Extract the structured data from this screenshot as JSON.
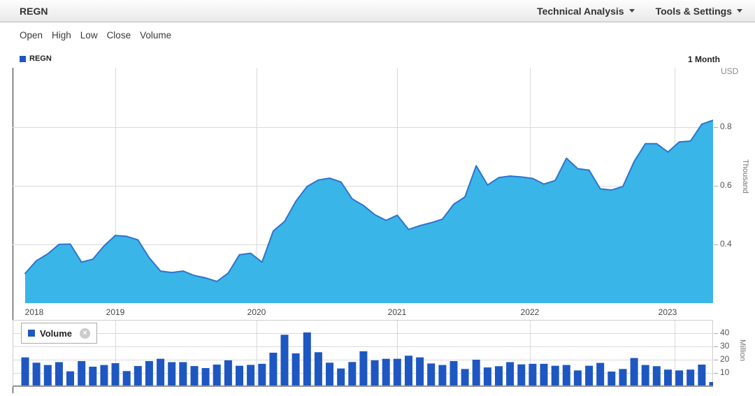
{
  "header": {
    "symbol": "REGN",
    "menus": [
      {
        "label": "Technical Analysis"
      },
      {
        "label": "Tools & Settings"
      }
    ]
  },
  "series_tabs": [
    "Open",
    "High",
    "Low",
    "Close",
    "Volume"
  ],
  "price_pane": {
    "legend": "REGN",
    "interval": "1 Month",
    "currency": "USD",
    "axis_title": "Thousand",
    "y_ticks": [
      "0.8",
      "0.6",
      "0.4"
    ]
  },
  "volume_pane": {
    "legend": "Volume",
    "axis_title": "Million",
    "y_ticks": [
      "40",
      "30",
      "20",
      "10"
    ]
  },
  "x_axis": {
    "years": [
      "2018",
      "2019",
      "2020",
      "2021",
      "2022",
      "2023"
    ]
  },
  "icons": {
    "close": "×"
  },
  "colors": {
    "area_fill": "#3ab5e8",
    "area_line": "#2e74cc",
    "volume_bar": "#1e57c2",
    "legend_marker": "#1e57c2",
    "grid": "#d9d9d9",
    "pane_border": "#cccccc",
    "axis_bottom": "#999999"
  },
  "chart_data": {
    "interval": "1 Month",
    "x_months": [
      "2018-04",
      "2018-05",
      "2018-06",
      "2018-07",
      "2018-08",
      "2018-09",
      "2018-10",
      "2018-11",
      "2018-12",
      "2019-01",
      "2019-02",
      "2019-03",
      "2019-04",
      "2019-05",
      "2019-06",
      "2019-07",
      "2019-08",
      "2019-09",
      "2019-10",
      "2019-11",
      "2019-12",
      "2020-01",
      "2020-02",
      "2020-03",
      "2020-04",
      "2020-05",
      "2020-06",
      "2020-07",
      "2020-08",
      "2020-09",
      "2020-10",
      "2020-11",
      "2020-12",
      "2021-01",
      "2021-02",
      "2021-03",
      "2021-04",
      "2021-05",
      "2021-06",
      "2021-07",
      "2021-08",
      "2021-09",
      "2021-10",
      "2021-11",
      "2021-12",
      "2022-01",
      "2022-02",
      "2022-03",
      "2022-04",
      "2022-05",
      "2022-06",
      "2022-07",
      "2022-08",
      "2022-09",
      "2022-10",
      "2022-11",
      "2022-12",
      "2023-01",
      "2023-02",
      "2023-03",
      "2023-04",
      "2023-05"
    ],
    "series": [
      {
        "type": "area",
        "name": "REGN",
        "unit": "thousand USD",
        "values": [
          0.307,
          0.35,
          0.373,
          0.405,
          0.406,
          0.345,
          0.355,
          0.4,
          0.435,
          0.432,
          0.42,
          0.36,
          0.315,
          0.31,
          0.315,
          0.3,
          0.292,
          0.28,
          0.308,
          0.37,
          0.375,
          0.345,
          0.45,
          0.482,
          0.55,
          0.6,
          0.622,
          0.628,
          0.615,
          0.558,
          0.536,
          0.505,
          0.486,
          0.503,
          0.455,
          0.468,
          0.478,
          0.49,
          0.54,
          0.565,
          0.67,
          0.605,
          0.63,
          0.635,
          0.632,
          0.627,
          0.608,
          0.62,
          0.695,
          0.66,
          0.655,
          0.592,
          0.588,
          0.6,
          0.684,
          0.744,
          0.744,
          0.716,
          0.75,
          0.753,
          0.81,
          0.823
        ]
      },
      {
        "type": "column",
        "name": "Volume",
        "unit": "million shares",
        "values": [
          21.8,
          17.7,
          15.9,
          18.1,
          11.0,
          18.9,
          14.6,
          15.9,
          17.3,
          11.2,
          15.1,
          18.9,
          20.7,
          18.1,
          18.1,
          15.1,
          13.5,
          16.2,
          19.5,
          15.3,
          16.0,
          16.8,
          25.4,
          39.3,
          24.9,
          41.1,
          25.8,
          17.7,
          13.2,
          18.2,
          26.5,
          19.5,
          20.7,
          20.7,
          23.1,
          21.8,
          17.1,
          15.9,
          18.9,
          12.8,
          20.0,
          14.0,
          15.0,
          18.1,
          16.4,
          16.8,
          16.8,
          15.3,
          15.9,
          11.7,
          15.3,
          17.5,
          10.8,
          12.8,
          21.3,
          15.9,
          15.0,
          12.3,
          11.7,
          12.3,
          16.2,
          2.7
        ]
      }
    ],
    "price_axis": {
      "label": "Thousand",
      "currency": "USD",
      "ticks": [
        0.4,
        0.6,
        0.8
      ],
      "range": [
        0.2,
        1.0
      ],
      "position": "right"
    },
    "volume_axis": {
      "label": "Million",
      "ticks": [
        10,
        20,
        30,
        40
      ],
      "range": [
        0,
        50
      ],
      "position": "right"
    },
    "x_axis_years": [
      "2018",
      "2019",
      "2020",
      "2021",
      "2022",
      "2023"
    ],
    "grid": "on",
    "legend_position": "top-left"
  }
}
